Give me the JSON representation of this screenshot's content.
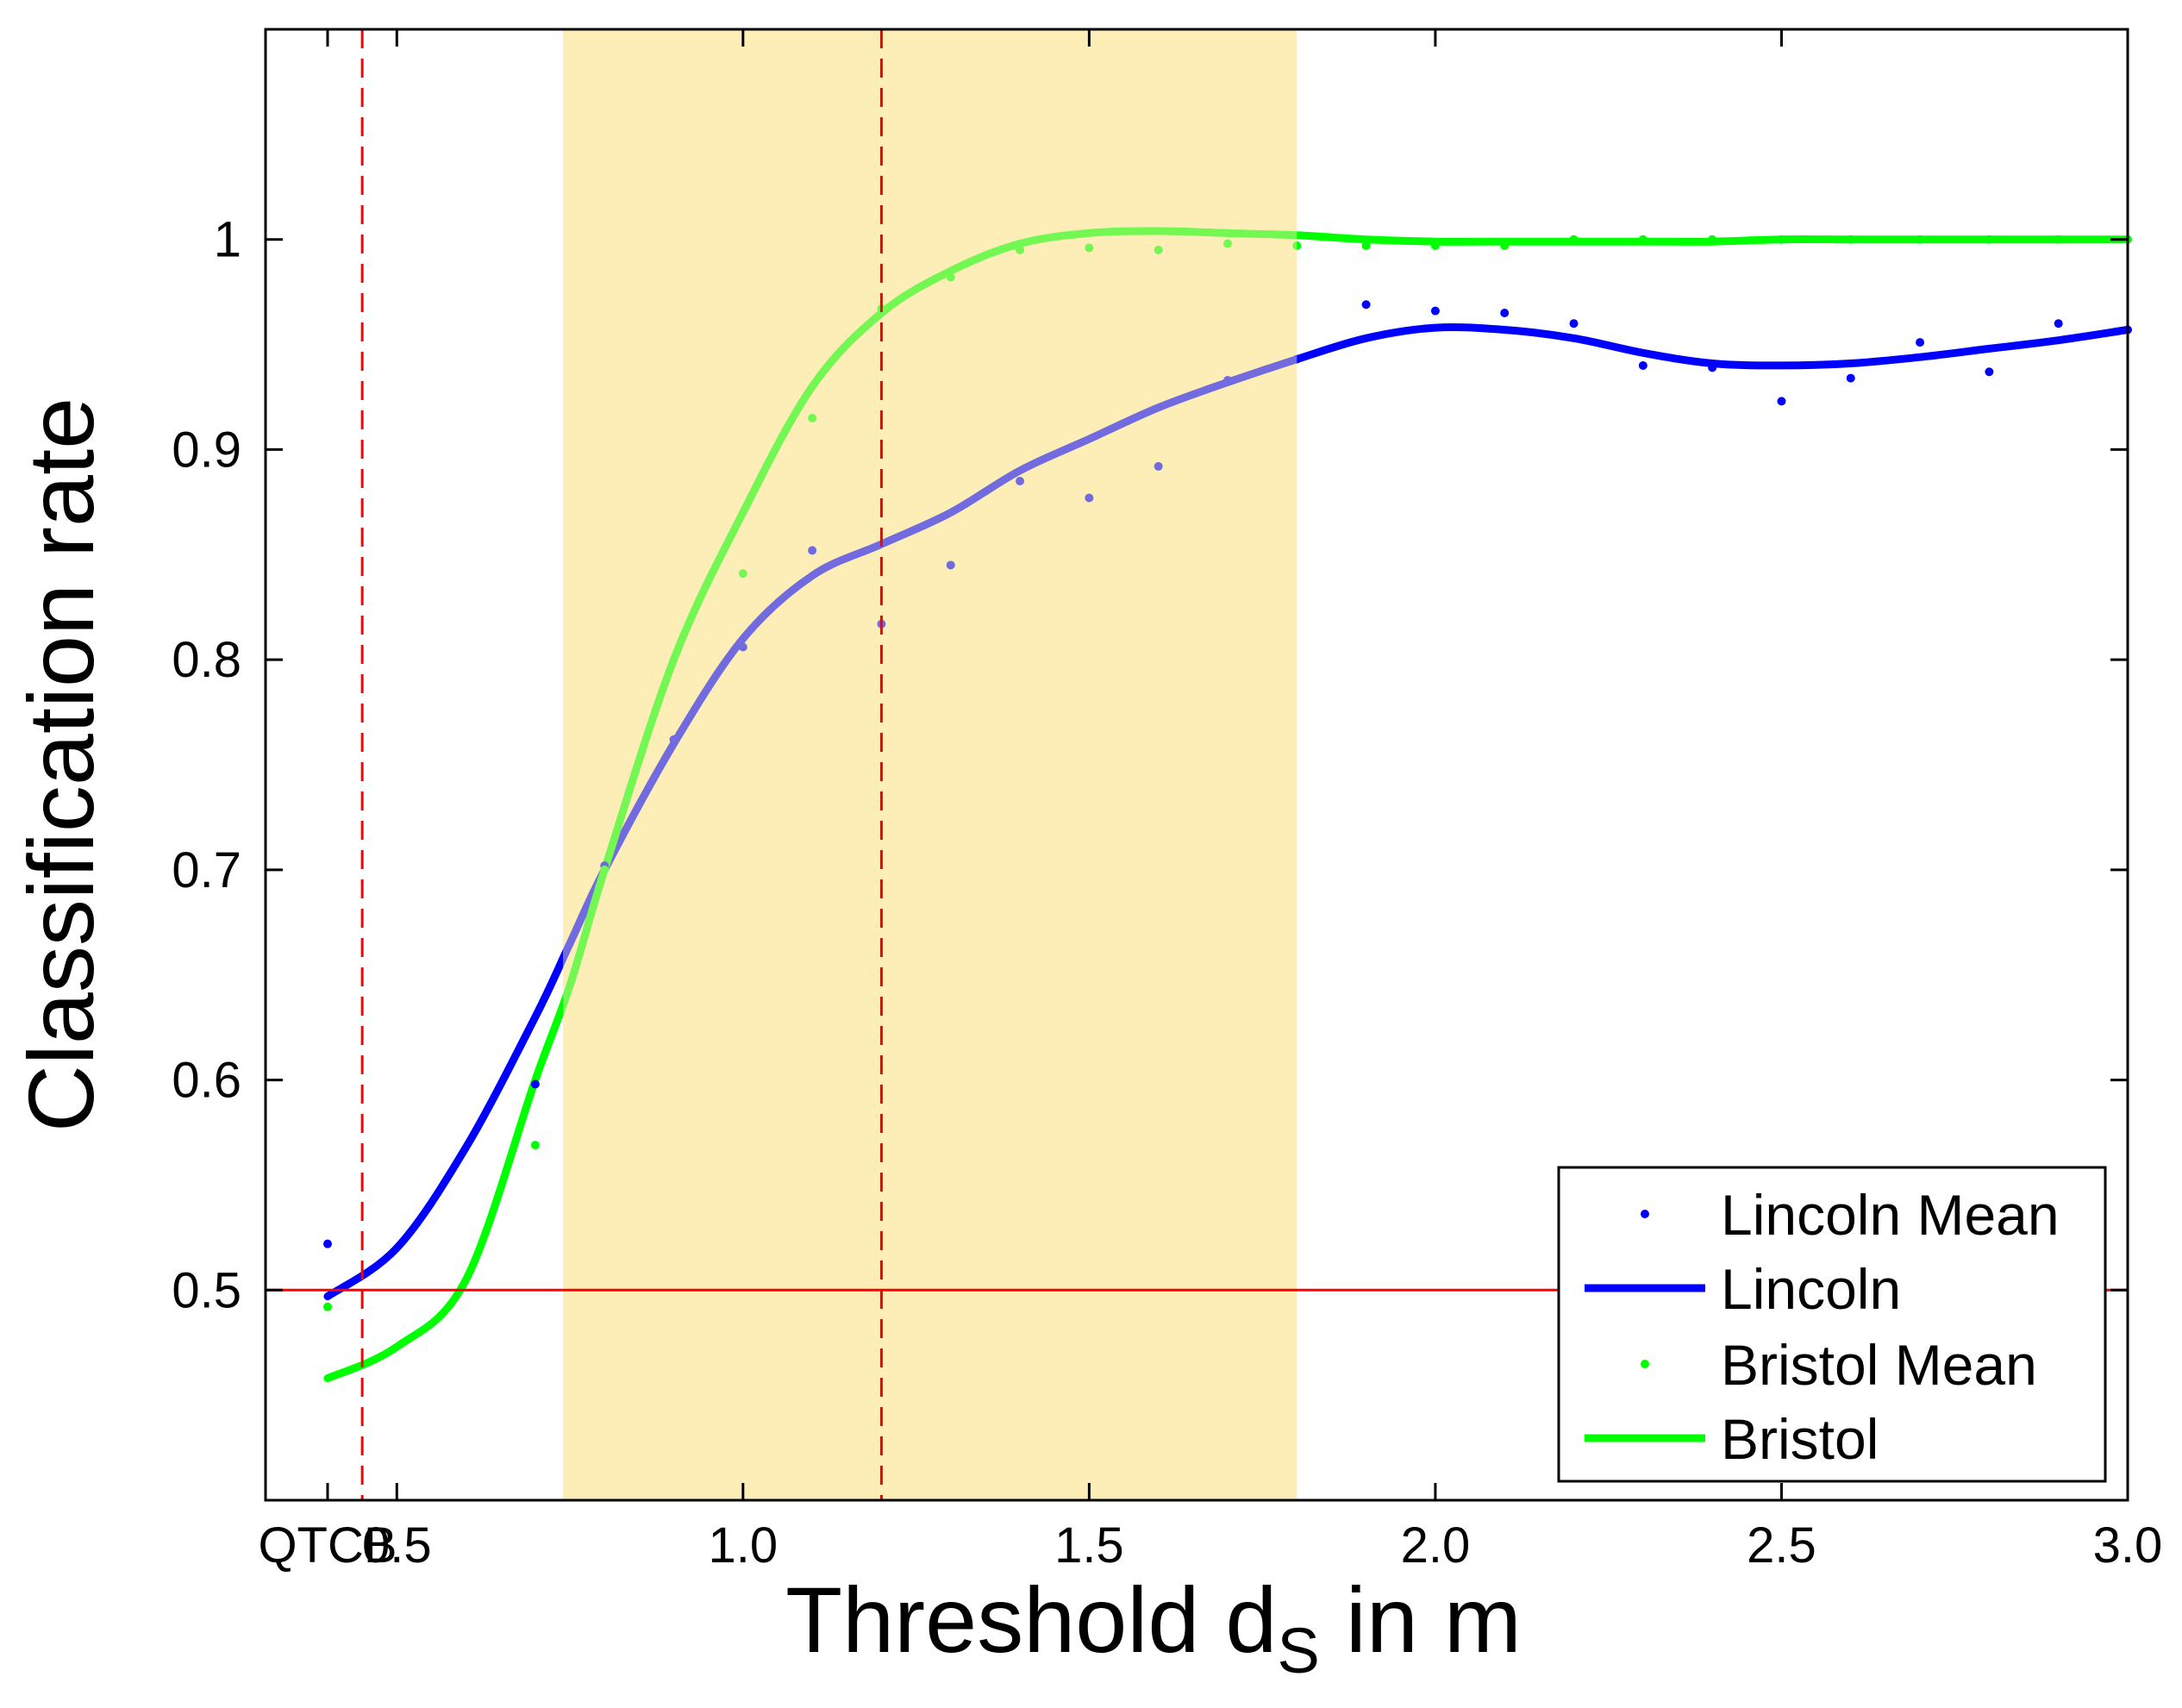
{
  "chart_data": {
    "type": "line",
    "title": "",
    "xlabel": "Threshold d",
    "xlabel_subscript": "S",
    "xlabel_suffix": " in m",
    "ylabel": "Classification rate",
    "xlim": [
      0.4,
      3.0
    ],
    "ylim": [
      0.4,
      1.1
    ],
    "x_ticks": [
      {
        "value": 0.4,
        "label": "QTCB"
      },
      {
        "value": 0.5,
        "label": "0.5"
      },
      {
        "value": 1.0,
        "label": "1.0"
      },
      {
        "value": 1.5,
        "label": "1.5"
      },
      {
        "value": 2.0,
        "label": "2.0"
      },
      {
        "value": 2.5,
        "label": "2.5"
      },
      {
        "value": 3.0,
        "label": "3.0"
      }
    ],
    "y_ticks": [
      {
        "value": 0.5,
        "label": "0.5"
      },
      {
        "value": 0.6,
        "label": "0.6"
      },
      {
        "value": 0.7,
        "label": "0.7"
      },
      {
        "value": 0.8,
        "label": "0.8"
      },
      {
        "value": 0.9,
        "label": "0.9"
      },
      {
        "value": 1.0,
        "label": "1"
      }
    ],
    "shaded_region": {
      "x_from": 0.74,
      "x_to": 1.8,
      "color": "#FDEEB8"
    },
    "reference_lines": [
      {
        "orientation": "horizontal",
        "value": 0.5,
        "color": "#FF0000",
        "style": "solid"
      },
      {
        "orientation": "vertical",
        "value": 0.45,
        "color": "#FF0000",
        "style": "dashed"
      },
      {
        "orientation": "vertical",
        "value": 1.2,
        "color": "#FF0000",
        "style": "dashed"
      }
    ],
    "series": [
      {
        "name": "Lincoln Mean",
        "kind": "points",
        "color": "#0000FF",
        "x": [
          0.4,
          0.7,
          0.8,
          0.9,
          1.0,
          1.1,
          1.2,
          1.3,
          1.4,
          1.5,
          1.6,
          1.7,
          1.8,
          1.9,
          2.0,
          2.1,
          2.2,
          2.3,
          2.4,
          2.5,
          2.6,
          2.7,
          2.8,
          2.9,
          3.0
        ],
        "y": [
          0.522,
          0.598,
          0.702,
          0.762,
          0.806,
          0.852,
          0.817,
          0.845,
          0.885,
          0.877,
          0.892,
          0.933,
          0.943,
          0.969,
          0.966,
          0.965,
          0.96,
          0.94,
          0.939,
          0.923,
          0.934,
          0.951,
          0.937,
          0.96,
          0.957
        ]
      },
      {
        "name": "Lincoln",
        "kind": "line",
        "color": "#0000FF",
        "x": [
          0.4,
          0.5,
          0.6,
          0.7,
          0.75,
          0.8,
          0.9,
          1.0,
          1.1,
          1.2,
          1.3,
          1.4,
          1.5,
          1.6,
          1.7,
          1.8,
          1.9,
          2.0,
          2.1,
          2.2,
          2.3,
          2.4,
          2.5,
          2.6,
          2.7,
          2.8,
          2.9,
          3.0
        ],
        "y": [
          0.497,
          0.52,
          0.568,
          0.63,
          0.665,
          0.7,
          0.76,
          0.81,
          0.84,
          0.855,
          0.87,
          0.89,
          0.905,
          0.92,
          0.932,
          0.943,
          0.953,
          0.958,
          0.957,
          0.953,
          0.946,
          0.941,
          0.94,
          0.941,
          0.944,
          0.948,
          0.952,
          0.957
        ]
      },
      {
        "name": "Bristol Mean",
        "kind": "points",
        "color": "#00FF00",
        "x": [
          0.4,
          0.7,
          0.8,
          1.0,
          1.1,
          1.2,
          1.3,
          1.4,
          1.5,
          1.6,
          1.7,
          1.8,
          1.9,
          2.0,
          2.1,
          2.2,
          2.3,
          2.4,
          2.5,
          2.6,
          2.7,
          2.8,
          2.9,
          3.0
        ],
        "y": [
          0.492,
          0.569,
          0.7,
          0.841,
          0.915,
          0.967,
          0.982,
          0.995,
          0.996,
          0.995,
          0.998,
          0.997,
          0.997,
          0.997,
          0.997,
          1.0,
          1.0,
          1.0,
          1.0,
          1.0,
          1.0,
          1.0,
          1.0,
          1.0
        ]
      },
      {
        "name": "Bristol",
        "kind": "line",
        "color": "#00FF00",
        "x": [
          0.4,
          0.5,
          0.6,
          0.7,
          0.75,
          0.8,
          0.9,
          1.0,
          1.1,
          1.2,
          1.3,
          1.4,
          1.5,
          1.6,
          1.7,
          1.8,
          1.9,
          2.0,
          2.1,
          2.2,
          2.3,
          2.4,
          2.5,
          2.6,
          2.7,
          2.8,
          2.9,
          3.0
        ],
        "y": [
          0.458,
          0.473,
          0.505,
          0.6,
          0.645,
          0.7,
          0.8,
          0.87,
          0.93,
          0.965,
          0.985,
          0.998,
          1.003,
          1.004,
          1.003,
          1.002,
          1.0,
          0.999,
          0.999,
          0.999,
          0.999,
          0.999,
          1.0,
          1.0,
          1.0,
          1.0,
          1.0,
          1.0
        ]
      }
    ],
    "legend": {
      "position": "bottom-right",
      "entries": [
        {
          "label": "Lincoln Mean",
          "kind": "points",
          "color": "#0000FF"
        },
        {
          "label": "Lincoln",
          "kind": "line",
          "color": "#0000FF"
        },
        {
          "label": "Bristol Mean",
          "kind": "points",
          "color": "#00FF00"
        },
        {
          "label": "Bristol",
          "kind": "line",
          "color": "#00FF00"
        }
      ]
    }
  }
}
